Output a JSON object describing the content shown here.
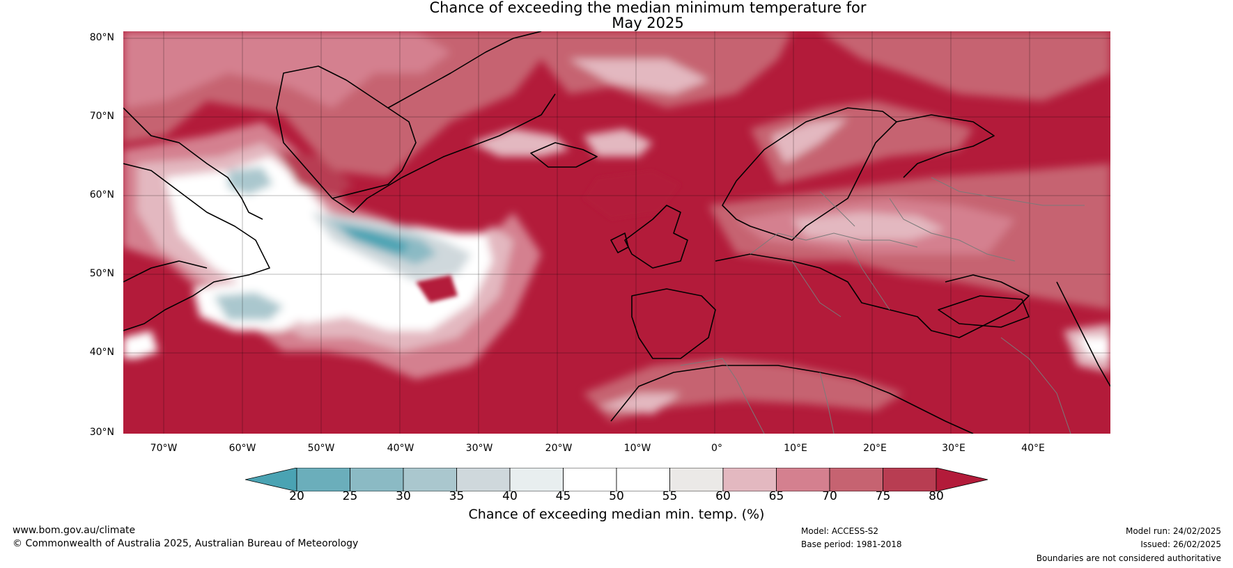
{
  "title": {
    "line1": "Chance of exceeding the median minimum temperature for",
    "line2": "May 2025"
  },
  "map": {
    "region": "North Atlantic and Europe",
    "lat_labels": [
      "80°N",
      "70°N",
      "60°N",
      "50°N",
      "40°N",
      "30°N"
    ],
    "lon_labels": [
      "70°W",
      "60°W",
      "50°W",
      "40°W",
      "30°W",
      "20°W",
      "10°W",
      "0°",
      "10°E",
      "20°E",
      "30°E",
      "40°E"
    ],
    "dominant_color": "#b31b3a"
  },
  "colorbar": {
    "ticks": [
      "20",
      "25",
      "30",
      "35",
      "40",
      "45",
      "50",
      "55",
      "60",
      "65",
      "70",
      "75",
      "80"
    ],
    "colors": [
      "#4aa3b3",
      "#6baebb",
      "#8bbac4",
      "#aac7ce",
      "#cfd8dc",
      "#e8eeef",
      "#ffffff",
      "#ffffff",
      "#ebe9e7",
      "#e3b8c0",
      "#d4808f",
      "#c66371",
      "#b83d52",
      "#b31b3a"
    ],
    "label": "Chance of exceeding median min. temp. (%)"
  },
  "footer": {
    "website": "www.bom.gov.au/climate",
    "copyright": "© Commonwealth of Australia 2025, Australian Bureau of Meteorology",
    "model": "Model: ACCESS-S2",
    "base_period": "Base period: 1981-2018",
    "model_run": "Model run: 24/02/2025",
    "issued": "Issued: 26/02/2025",
    "disclaimer": "Boundaries are not considered authoritative"
  }
}
